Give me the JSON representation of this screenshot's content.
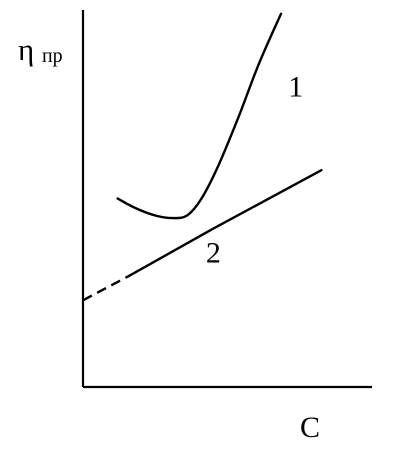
{
  "chart_data": {
    "type": "line",
    "title": "",
    "ylabel": {
      "main": "η",
      "subscript": "пр"
    },
    "xlabel": "C",
    "grid": false,
    "legend": "none",
    "xlim": [
      0,
      10
    ],
    "ylim": [
      0,
      10
    ],
    "series": [
      {
        "label": "1",
        "color": "#000000",
        "line_style": "solid",
        "points": [
          [
            1.2,
            5.0
          ],
          [
            1.8,
            4.75
          ],
          [
            2.5,
            4.55
          ],
          [
            3.1,
            4.48
          ],
          [
            3.6,
            4.55
          ],
          [
            4.1,
            5.0
          ],
          [
            4.7,
            5.9
          ],
          [
            5.4,
            7.2
          ],
          [
            6.1,
            8.6
          ],
          [
            6.85,
            9.9
          ]
        ]
      },
      {
        "label": "2",
        "color": "#000000",
        "line_style": "solid",
        "dashed_segment": {
          "points": [
            [
              0.0,
              2.3
            ],
            [
              1.6,
              2.95
            ]
          ]
        },
        "points": [
          [
            1.6,
            2.95
          ],
          [
            4.5,
            4.2
          ],
          [
            8.25,
            5.75
          ]
        ]
      }
    ],
    "annotations": [
      {
        "text": "1",
        "x": 7.1,
        "y": 7.7
      },
      {
        "text": "2",
        "x": 4.25,
        "y": 3.3
      }
    ]
  }
}
